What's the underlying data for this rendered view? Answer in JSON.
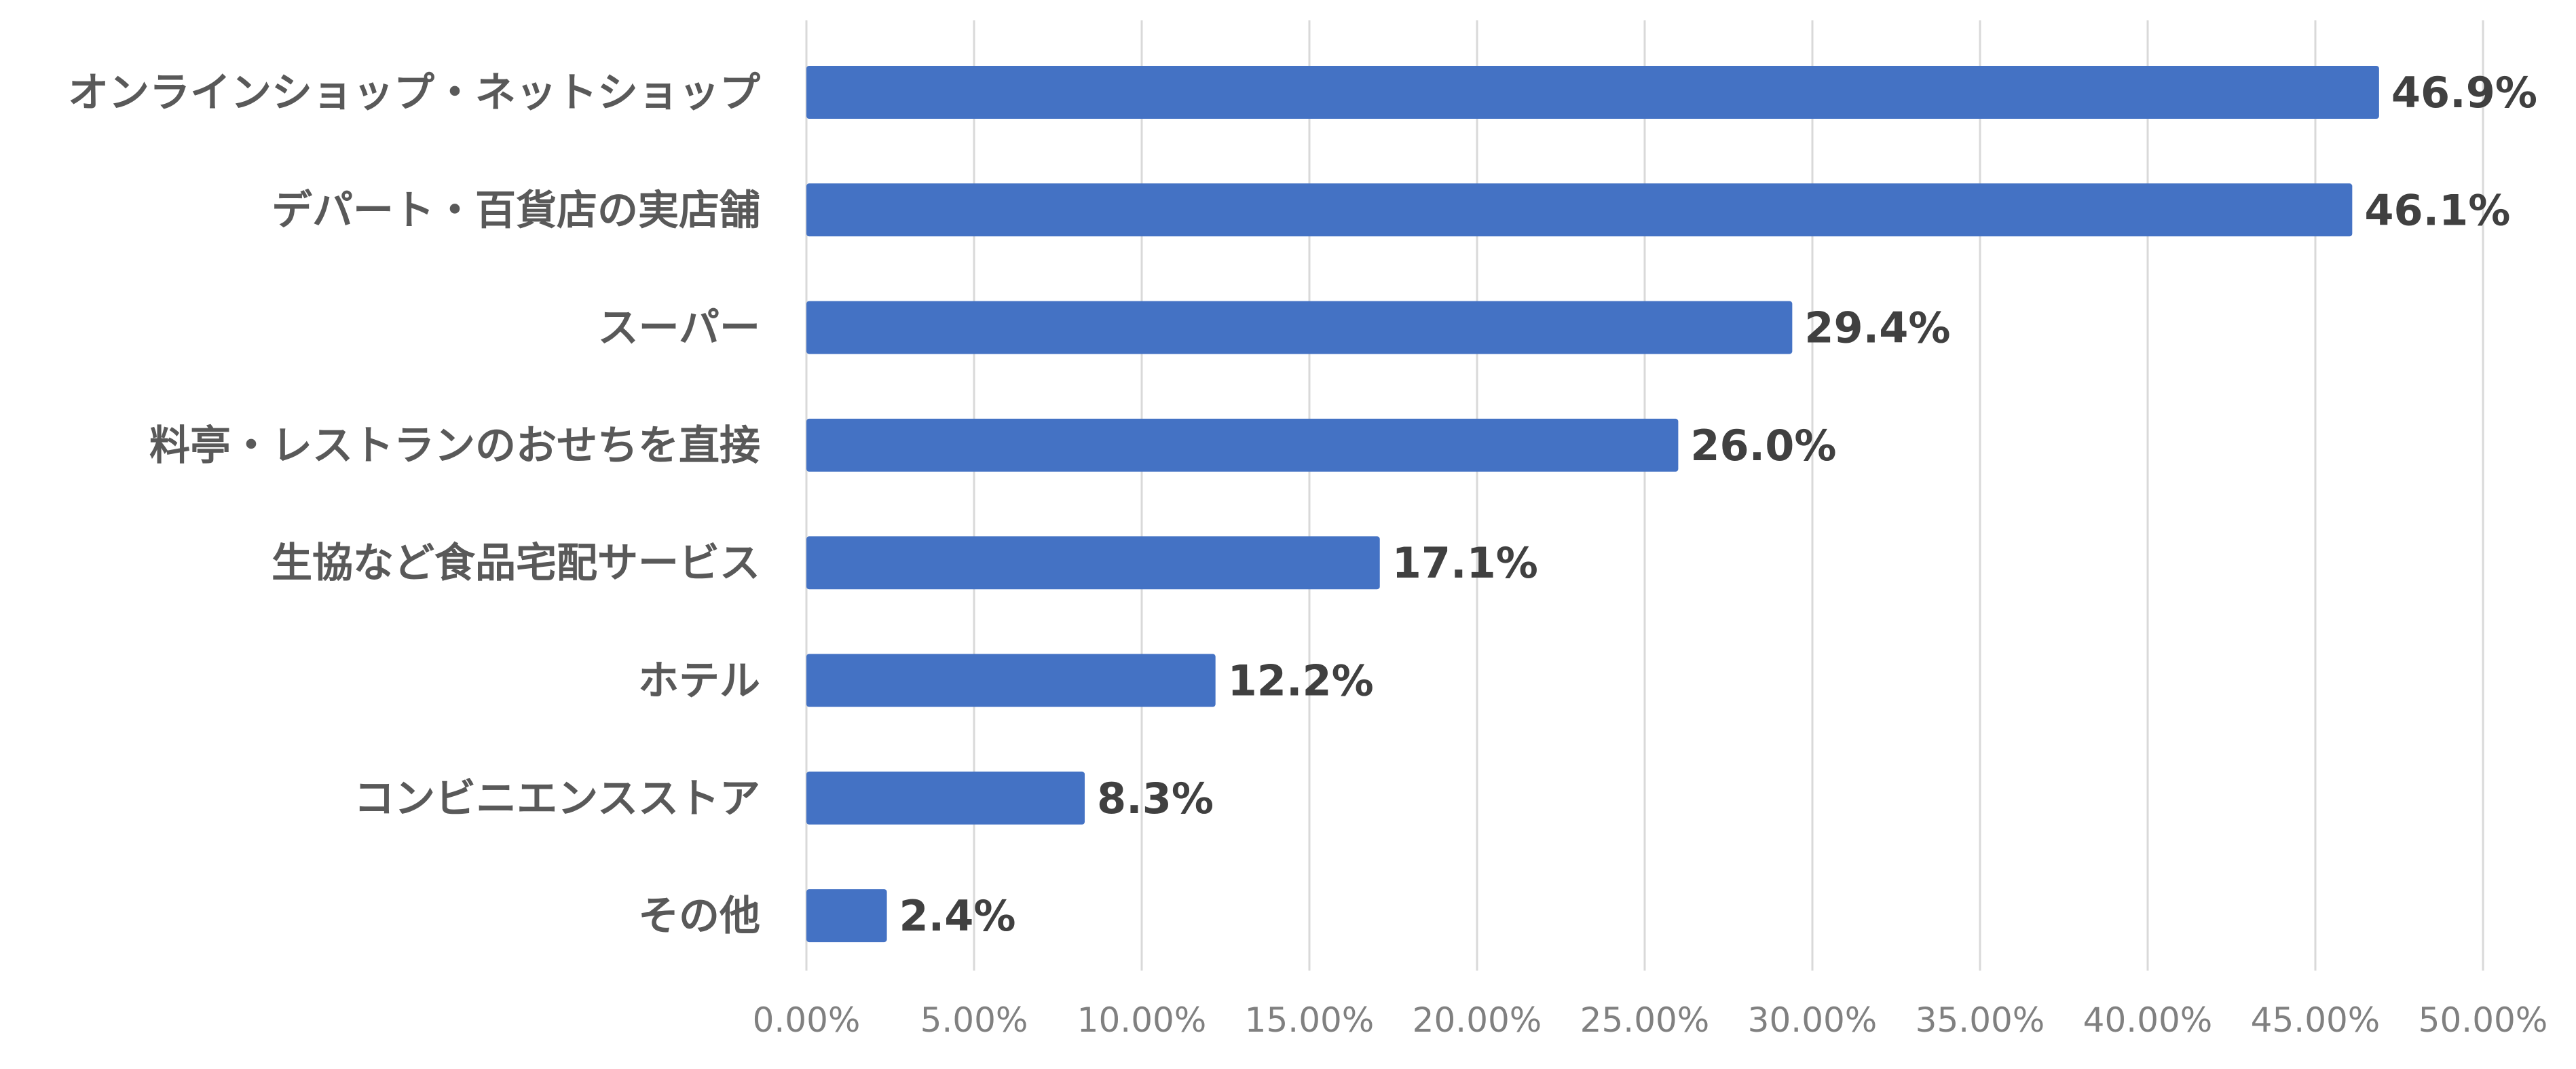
{
  "colors": {
    "bar": "#4472c4",
    "grid": "#d9d9d9",
    "category_text": "#595959",
    "value_text": "#404040",
    "tick_text": "#808080"
  },
  "chart_data": {
    "type": "bar",
    "orientation": "horizontal",
    "title": "",
    "xlabel": "",
    "ylabel": "",
    "xlim": [
      0,
      50
    ],
    "x_ticks": [
      0,
      5,
      10,
      15,
      20,
      25,
      30,
      35,
      40,
      45,
      50
    ],
    "x_tick_labels": [
      "0.00%",
      "5.00%",
      "10.00%",
      "15.00%",
      "20.00%",
      "25.00%",
      "30.00%",
      "35.00%",
      "40.00%",
      "45.00%",
      "50.00%"
    ],
    "grid": true,
    "legend": "none",
    "categories": [
      "オンラインショップ・ネットショップ",
      "デパート・百貨店の実店舗",
      "スーパー",
      "料亭・レストランのおせちを直接",
      "生協など食品宅配サービス",
      "ホテル",
      "コンビニエンスストア",
      "その他"
    ],
    "values": [
      46.9,
      46.1,
      29.4,
      26.0,
      17.1,
      12.2,
      8.3,
      2.4
    ],
    "value_labels": [
      "46.9%",
      "46.1%",
      "29.4%",
      "26.0%",
      "17.1%",
      "12.2%",
      "8.3%",
      "2.4%"
    ]
  }
}
